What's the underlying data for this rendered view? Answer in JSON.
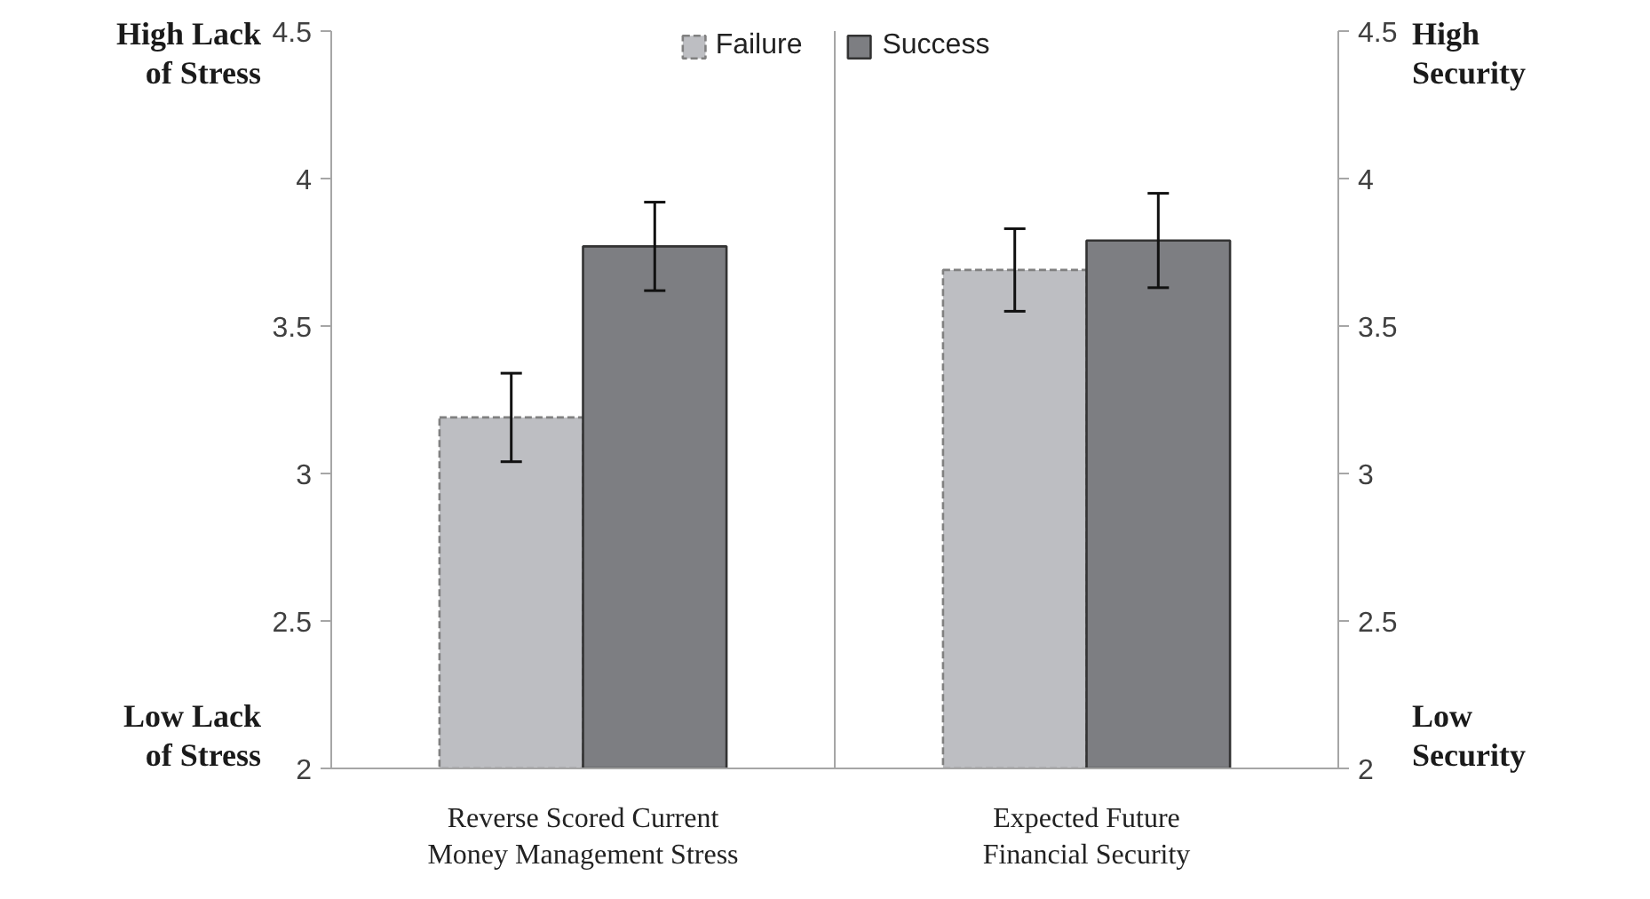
{
  "chart_data": {
    "type": "bar",
    "categories": [
      "Reverse Scored Current\nMoney Management Stress",
      "Expected Future\nFinancial Security"
    ],
    "series": [
      {
        "name": "Failure",
        "color": "#bdbec2",
        "values": [
          3.19,
          3.69
        ],
        "errors": [
          0.15,
          0.14
        ],
        "line_style": "dashed"
      },
      {
        "name": "Success",
        "color": "#7d7e82",
        "values": [
          3.77,
          3.79
        ],
        "errors": [
          0.15,
          0.16
        ],
        "line_style": "solid"
      }
    ],
    "ylim": [
      2,
      4.5
    ],
    "yticks": [
      2,
      2.5,
      3,
      3.5,
      4,
      4.5
    ],
    "y2lim": [
      2,
      4.5
    ],
    "y2ticks": [
      2,
      2.5,
      3,
      3.5,
      4,
      4.5
    ],
    "annotations": [
      "High Lack\nof Stress",
      "Low Lack\nof Stress",
      "High\nSecurity",
      "Low\nSecurity"
    ],
    "legend": "top",
    "grid": false
  }
}
